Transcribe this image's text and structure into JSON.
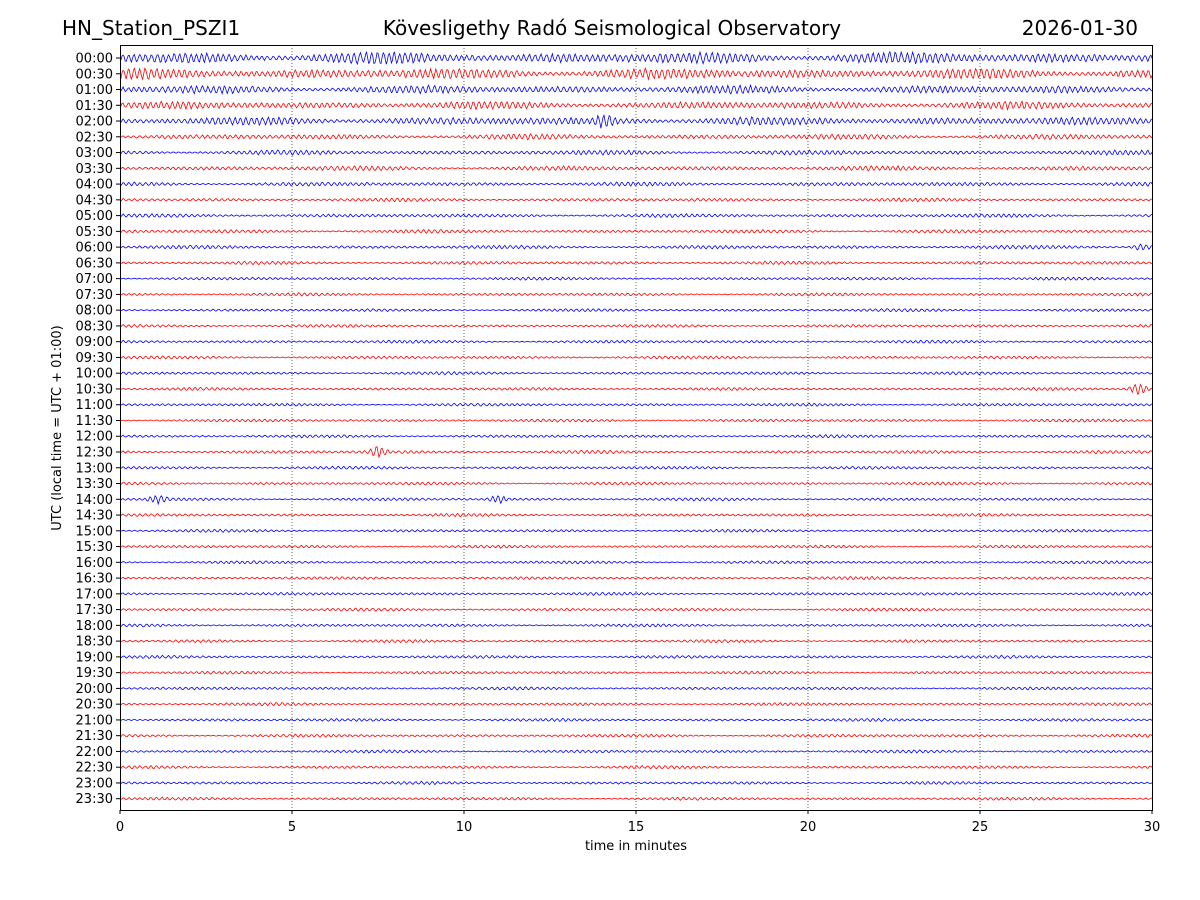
{
  "header": {
    "station": "HN_Station_PSZI1",
    "title": "Kövesligethy Radó Seismological Observatory",
    "date": "2026-01-30"
  },
  "colors": {
    "even_trace": "#0000ff",
    "odd_trace": "#ff0000",
    "grid": "#000000",
    "axis": "#000000"
  },
  "chart_data": {
    "type": "line",
    "xlabel": "time in minutes",
    "ylabel": "UTC (local time = UTC + 01:00)",
    "xlim": [
      0,
      30
    ],
    "x_ticks": [
      "0",
      "5",
      "10",
      "15",
      "20",
      "25",
      "30"
    ],
    "grid": "vertical dotted lines at x ticks",
    "rows": [
      "00:00",
      "00:30",
      "01:00",
      "01:30",
      "02:00",
      "02:30",
      "03:00",
      "03:30",
      "04:00",
      "04:30",
      "05:00",
      "05:30",
      "06:00",
      "06:30",
      "07:00",
      "07:30",
      "08:00",
      "08:30",
      "09:00",
      "09:30",
      "10:00",
      "10:30",
      "11:00",
      "11:30",
      "12:00",
      "12:30",
      "13:00",
      "13:30",
      "14:00",
      "14:30",
      "15:00",
      "15:30",
      "16:00",
      "16:30",
      "17:00",
      "17:30",
      "18:00",
      "18:30",
      "19:00",
      "19:30",
      "20:00",
      "20:30",
      "21:00",
      "21:30",
      "22:00",
      "22:30",
      "23:00",
      "23:30"
    ],
    "row_activity": [
      1.0,
      0.9,
      0.7,
      0.65,
      0.7,
      0.45,
      0.4,
      0.4,
      0.35,
      0.3,
      0.3,
      0.3,
      0.3,
      0.28,
      0.25,
      0.25,
      0.25,
      0.25,
      0.25,
      0.25,
      0.25,
      0.25,
      0.25,
      0.25,
      0.25,
      0.28,
      0.25,
      0.25,
      0.25,
      0.25,
      0.25,
      0.25,
      0.25,
      0.25,
      0.25,
      0.25,
      0.25,
      0.25,
      0.25,
      0.25,
      0.25,
      0.25,
      0.25,
      0.25,
      0.25,
      0.25,
      0.25,
      0.25
    ],
    "events": [
      {
        "row": "10:30",
        "x_minutes": 29.6,
        "amplitude": 1.2
      },
      {
        "row": "12:30",
        "x_minutes": 7.5,
        "amplitude": 0.9
      },
      {
        "row": "14:00",
        "x_minutes": 1.1,
        "amplitude": 0.6
      },
      {
        "row": "14:00",
        "x_minutes": 11.0,
        "amplitude": 0.6
      },
      {
        "row": "02:00",
        "x_minutes": 14.1,
        "amplitude": 0.9
      },
      {
        "row": "06:00",
        "x_minutes": 29.7,
        "amplitude": 0.6
      }
    ]
  }
}
